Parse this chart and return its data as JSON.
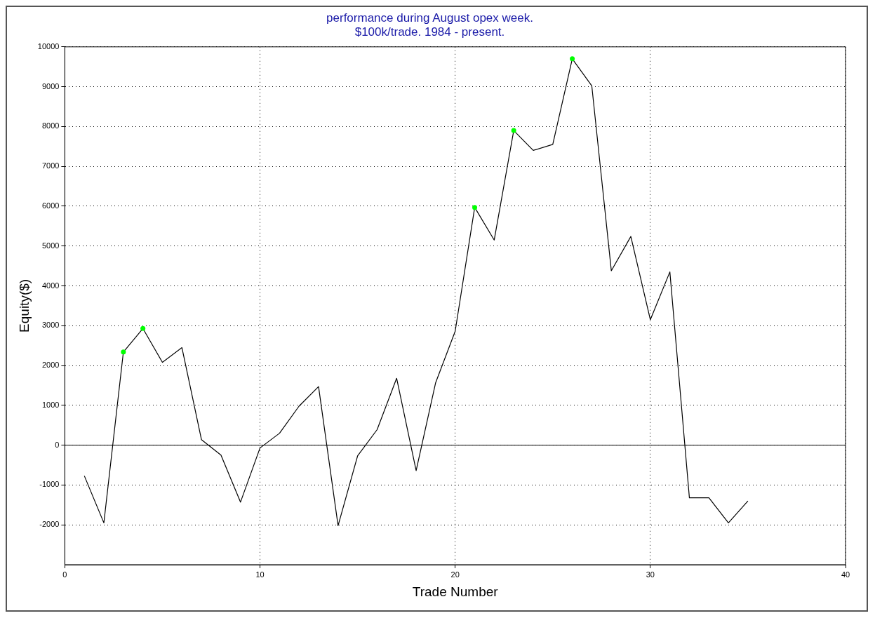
{
  "chart_data": {
    "type": "line",
    "title": "performance during August opex week.",
    "subtitle": "$100k/trade. 1984 - present.",
    "xlabel": "Trade Number",
    "ylabel": "Equity($)",
    "xlim": [
      0,
      40
    ],
    "xticks": [
      0,
      10,
      20,
      30,
      40
    ],
    "ylim": [
      -3000,
      10000
    ],
    "yticks": [
      -2000,
      -1000,
      0,
      1000,
      2000,
      3000,
      4000,
      5000,
      6000,
      7000,
      8000,
      9000,
      10000
    ],
    "grid": true,
    "ref_lines": [
      {
        "axis": "y",
        "value": 0,
        "color": "#000000",
        "line_style": "solid"
      }
    ],
    "series": [
      {
        "type": "line",
        "color": "#000000",
        "marker": "none",
        "line_style": "solid",
        "x": [
          1,
          2,
          3,
          4,
          5,
          6,
          7,
          8,
          9,
          10,
          11,
          12,
          13,
          14,
          15,
          16,
          17,
          18,
          19,
          20,
          21,
          22,
          23,
          24,
          25,
          26,
          27,
          28,
          29,
          30,
          31,
          32,
          33,
          34,
          35
        ],
        "values": [
          -770,
          -1950,
          2340,
          2930,
          2080,
          2450,
          140,
          -250,
          -1430,
          -70,
          300,
          980,
          1470,
          -2020,
          -270,
          390,
          1680,
          -640,
          1570,
          2860,
          5970,
          5150,
          7900,
          7400,
          7550,
          9700,
          9020,
          4380,
          5240,
          3150,
          4350,
          -1320,
          -1320,
          -1950,
          -1400
        ]
      },
      {
        "type": "scatter",
        "color": "#00ff00",
        "marker": "circle",
        "x": [
          3,
          4,
          21,
          23,
          26
        ],
        "values": [
          2340,
          2930,
          5970,
          7900,
          9700
        ]
      }
    ]
  }
}
